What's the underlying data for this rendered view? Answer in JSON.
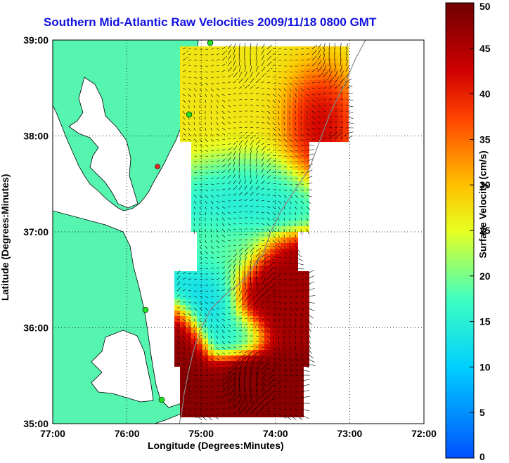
{
  "title": "Southern Mid-Atlantic Raw Velocities 2009/11/18 0800 GMT",
  "x_axis": {
    "label": "Longitude (Degrees:Minutes)",
    "ticks": [
      "77:00",
      "76:00",
      "75:00",
      "74:00",
      "73:00",
      "72:00"
    ]
  },
  "y_axis": {
    "label": "Latitude (Degrees:Minutes)",
    "ticks": [
      "39:00",
      "38:00",
      "37:00",
      "36:00",
      "35:00"
    ]
  },
  "colorbar": {
    "label": "Surface Velocity (cm/s)",
    "ticks": [
      "50",
      "45",
      "40",
      "35",
      "30",
      "25",
      "20",
      "15",
      "10",
      "5",
      "0"
    ],
    "range": [
      0,
      50
    ]
  },
  "colors": {
    "land": "#55f5b0",
    "water": "#ffffff",
    "title": "#1010e0",
    "station": "#22dd22",
    "station_alt": "#ee2222"
  },
  "map": {
    "lon_range": [
      -77,
      -72
    ],
    "lat_range": [
      35,
      39
    ],
    "grid": "dotted"
  }
}
